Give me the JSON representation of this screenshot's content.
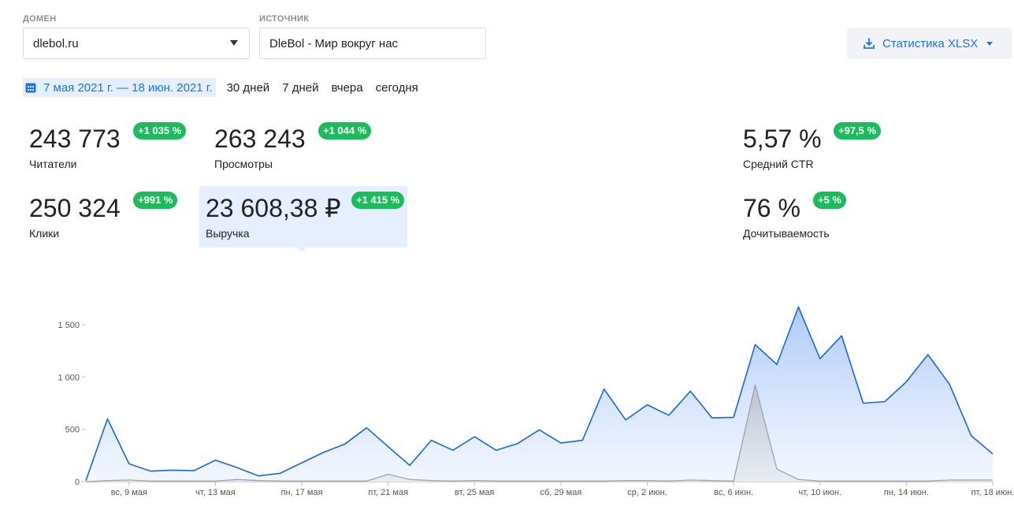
{
  "filters": {
    "domain": {
      "label": "ДОМЕН",
      "value": "dlebol.ru"
    },
    "source": {
      "label": "ИСТОЧНИК",
      "value": "DleBol - Мир вокруг нас"
    }
  },
  "export_button": {
    "label": "Статистика XLSX",
    "icon": "download-icon"
  },
  "date_filter": {
    "range": "7 мая 2021 г. — 18 июн. 2021 г.",
    "icon": "calendar-icon",
    "quick_options": [
      "30 дней",
      "7 дней",
      "вчера",
      "сегодня"
    ]
  },
  "metrics": {
    "readers": {
      "value": "243 773",
      "label": "Читатели",
      "change": "+1 035 %"
    },
    "views": {
      "value": "263 243",
      "label": "Просмотры",
      "change": "+1 044 %"
    },
    "ctr": {
      "value": "5,57 %",
      "label": "Средний CTR",
      "change": "+97,5 %"
    },
    "clicks": {
      "value": "250 324",
      "label": "Клики",
      "change": "+991 %"
    },
    "revenue": {
      "value": "23 608,38 ₽",
      "label": "Выручка",
      "change": "+1 415 %"
    },
    "read_rate": {
      "value": "76 %",
      "label": "Дочитываемость",
      "change": "+5 %"
    }
  },
  "colors": {
    "accent": "#1a73e8",
    "badge": "#1dbb5c",
    "line_main": "#1a66e0",
    "line_secondary": "#9aa3b2"
  },
  "chart_data": {
    "type": "area",
    "x_tick_labels": [
      "вс, 9 мая",
      "чт, 13 мая",
      "пн, 17 мая",
      "пт, 21 мая",
      "вт, 25 мая",
      "сб, 29 мая",
      "ср, 2 июн.",
      "вс, 6 июн.",
      "чт, 10 июн.",
      "пн, 14 июн.",
      "пт, 18 июн."
    ],
    "y_tick_labels": [
      "0",
      "500",
      "1 000",
      "1 500"
    ],
    "ylim": [
      0,
      1700
    ],
    "x_range": [
      "2021-05-07",
      "2021-06-18"
    ],
    "grid": false,
    "series": [
      {
        "color": "#1a66e0",
        "values": [
          10,
          600,
          170,
          100,
          110,
          105,
          205,
          135,
          55,
          80,
          180,
          280,
          360,
          515,
          335,
          155,
          395,
          300,
          430,
          300,
          365,
          495,
          370,
          395,
          885,
          590,
          735,
          635,
          865,
          610,
          615,
          1310,
          1120,
          1670,
          1175,
          1395,
          750,
          765,
          955,
          1215,
          930,
          440,
          265
        ]
      },
      {
        "color": "#9aa3b2",
        "values": [
          0,
          10,
          15,
          5,
          5,
          5,
          5,
          20,
          10,
          5,
          5,
          5,
          5,
          5,
          70,
          20,
          10,
          5,
          10,
          5,
          5,
          5,
          5,
          5,
          5,
          10,
          10,
          5,
          15,
          10,
          5,
          925,
          120,
          20,
          5,
          5,
          5,
          5,
          5,
          5,
          15,
          15,
          15
        ]
      }
    ]
  }
}
